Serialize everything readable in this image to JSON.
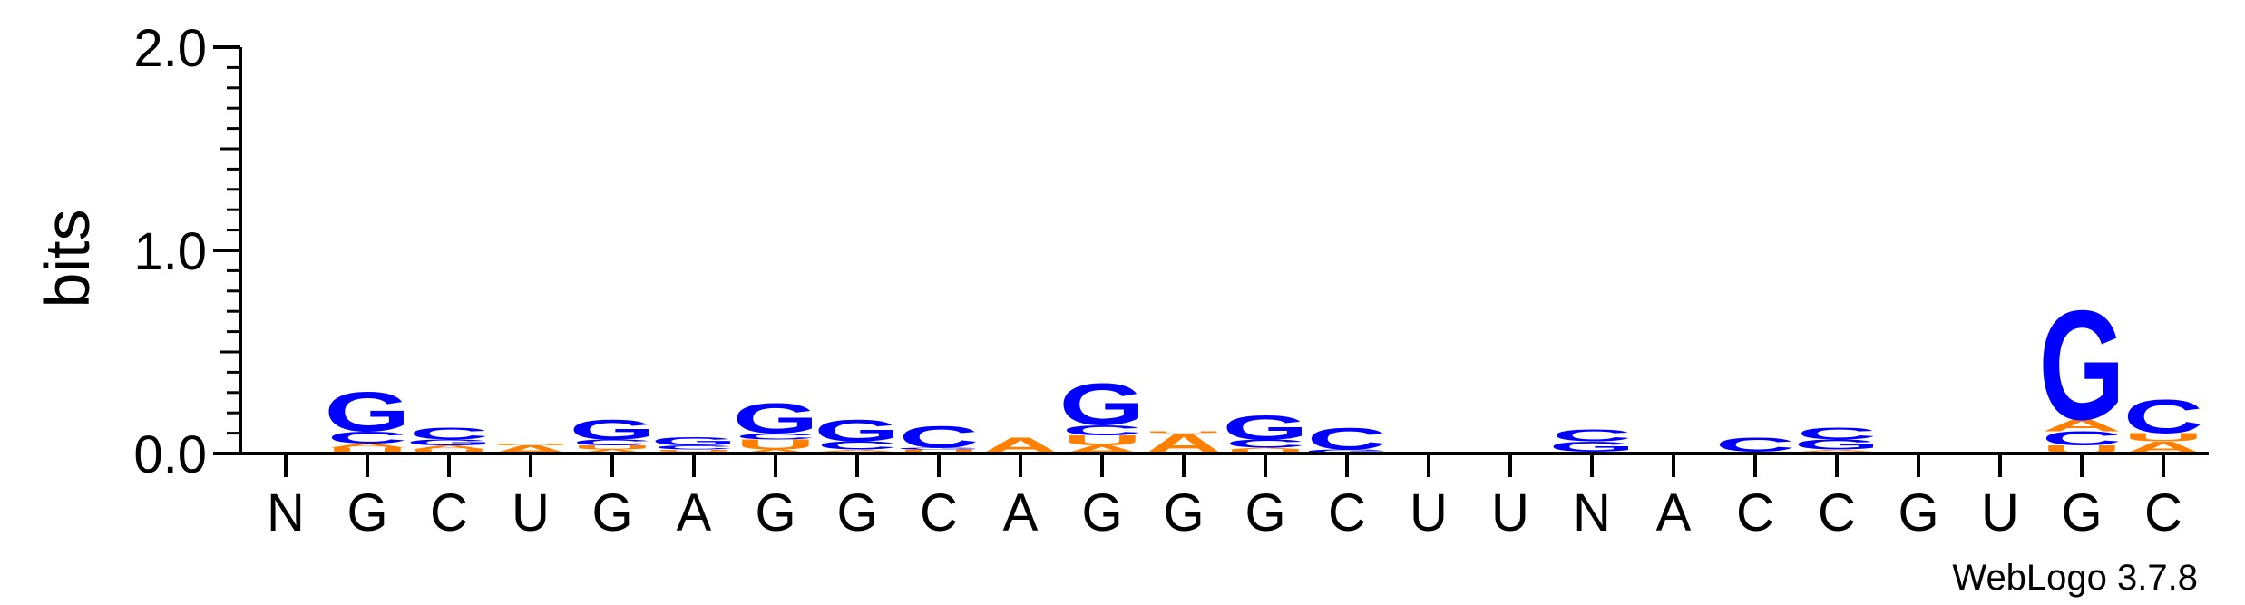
{
  "chart_data": {
    "type": "sequence-logo",
    "ylabel": "bits",
    "ylim": [
      0,
      2
    ],
    "yticks": [
      "0.0",
      "1.0",
      "2.0"
    ],
    "positions": [
      "N",
      "G",
      "C",
      "U",
      "G",
      "A",
      "G",
      "G",
      "C",
      "A",
      "G",
      "G",
      "G",
      "C",
      "U",
      "U",
      "N",
      "A",
      "C",
      "C",
      "G",
      "U",
      "G",
      "C"
    ],
    "colors": {
      "G": "#0000ff",
      "C": "#0000ff",
      "A": "#ff8000",
      "U": "#ff8000"
    },
    "stacks": [
      [],
      [
        [
          "U",
          0.03
        ],
        [
          "A",
          0.02
        ],
        [
          "C",
          0.06
        ],
        [
          "G",
          0.2
        ]
      ],
      [
        [
          "U",
          0.02
        ],
        [
          "A",
          0.02
        ],
        [
          "G",
          0.03
        ],
        [
          "C",
          0.06
        ]
      ],
      [
        [
          "A",
          0.04
        ],
        [
          "U",
          0.01
        ]
      ],
      [
        [
          "A",
          0.02
        ],
        [
          "U",
          0.02
        ],
        [
          "C",
          0.03
        ],
        [
          "G",
          0.1
        ]
      ],
      [
        [
          "A",
          0.01
        ],
        [
          "U",
          0.01
        ],
        [
          "C",
          0.02
        ],
        [
          "G",
          0.04
        ]
      ],
      [
        [
          "A",
          0.02
        ],
        [
          "U",
          0.05
        ],
        [
          "C",
          0.03
        ],
        [
          "G",
          0.15
        ]
      ],
      [
        [
          "U",
          0.01
        ],
        [
          "A",
          0.01
        ],
        [
          "C",
          0.04
        ],
        [
          "G",
          0.11
        ]
      ],
      [
        [
          "U",
          0.02
        ],
        [
          "G",
          0.01
        ],
        [
          "C",
          0.11
        ]
      ],
      [
        [
          "A",
          0.08
        ]
      ],
      [
        [
          "A",
          0.04
        ],
        [
          "U",
          0.05
        ],
        [
          "C",
          0.05
        ],
        [
          "G",
          0.21
        ]
      ],
      [
        [
          "A",
          0.1
        ],
        [
          "U",
          0.01
        ]
      ],
      [
        [
          "U",
          0.02
        ],
        [
          "A",
          0.01
        ],
        [
          "C",
          0.04
        ],
        [
          "G",
          0.12
        ]
      ],
      [
        [
          "G",
          0.02
        ],
        [
          "C",
          0.11
        ]
      ],
      [],
      [],
      [
        [
          "U",
          0.01
        ],
        [
          "G",
          0.05
        ],
        [
          "C",
          0.06
        ]
      ],
      [],
      [
        [
          "U",
          0.01
        ],
        [
          "C",
          0.07
        ]
      ],
      [
        [
          "U",
          0.01
        ],
        [
          "A",
          0.01
        ],
        [
          "G",
          0.05
        ],
        [
          "C",
          0.06
        ]
      ],
      [
        [
          "U",
          0.01
        ]
      ],
      [],
      [
        [
          "U",
          0.04
        ],
        [
          "C",
          0.07
        ],
        [
          "A",
          0.06
        ],
        [
          "G",
          0.55
        ]
      ],
      [
        [
          "A",
          0.06
        ],
        [
          "U",
          0.04
        ],
        [
          "C",
          0.17
        ]
      ]
    ]
  },
  "credit": "WebLogo 3.7.8"
}
